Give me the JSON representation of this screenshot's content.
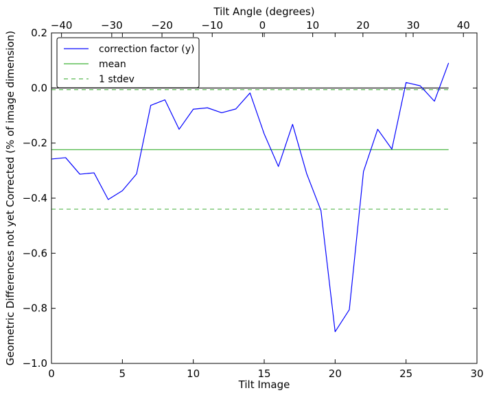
{
  "chart_data": {
    "type": "line",
    "xlabel": "Tilt Image",
    "ylabel": "Geometric Differences not yet Corrected (% of image dimension)",
    "top_xlabel": "Tilt Angle (degrees)",
    "xlim": [
      0,
      30
    ],
    "ylim": [
      -1.0,
      0.2
    ],
    "top_xlim": [
      -42,
      42.7
    ],
    "xticks": [
      0,
      5,
      10,
      15,
      20,
      25,
      30
    ],
    "xtick_labels": [
      "0",
      "5",
      "10",
      "15",
      "20",
      "25",
      "30"
    ],
    "yticks": [
      -1.0,
      -0.8,
      -0.6,
      -0.4,
      -0.2,
      0.0,
      0.2
    ],
    "ytick_labels": [
      "−1.0",
      "−0.8",
      "−0.6",
      "−0.4",
      "−0.2",
      "0.0",
      "0.2"
    ],
    "top_xticks": [
      -40,
      -30,
      -20,
      -10,
      0,
      10,
      20,
      30,
      40
    ],
    "top_xtick_labels": [
      "−40",
      "−30",
      "−20",
      "−10",
      "0",
      "10",
      "20",
      "30",
      "40"
    ],
    "grid": false,
    "legend_position": "top-left",
    "series": [
      {
        "name": "correction factor (y)",
        "style": "solid",
        "color": "#0000ff",
        "x": [
          0,
          1,
          2,
          3,
          4,
          5,
          6,
          7,
          8,
          9,
          10,
          11,
          12,
          13,
          14,
          15,
          16,
          17,
          18,
          19,
          20,
          21,
          22,
          23,
          24,
          25,
          26,
          27,
          28
        ],
        "y": [
          -0.258,
          -0.253,
          -0.313,
          -0.308,
          -0.405,
          -0.373,
          -0.312,
          -0.063,
          -0.043,
          -0.15,
          -0.077,
          -0.072,
          -0.09,
          -0.076,
          -0.018,
          -0.167,
          -0.285,
          -0.132,
          -0.312,
          -0.445,
          -0.885,
          -0.805,
          -0.303,
          -0.15,
          -0.222,
          0.02,
          0.008,
          -0.048,
          0.091
        ]
      },
      {
        "name": "mean",
        "style": "solid",
        "color": "#3cb034",
        "x": [
          0,
          28
        ],
        "y": [
          -0.224,
          -0.224
        ]
      },
      {
        "name": "1 stdev",
        "style": "dashed",
        "color": "#56b84e",
        "x": [
          0,
          28
        ],
        "y": [
          -0.44,
          -0.44
        ],
        "upper_y": -0.006
      }
    ],
    "zero_line": {
      "color": "#000000",
      "x": [
        0,
        28
      ],
      "y": [
        0.0,
        0.0
      ]
    }
  }
}
